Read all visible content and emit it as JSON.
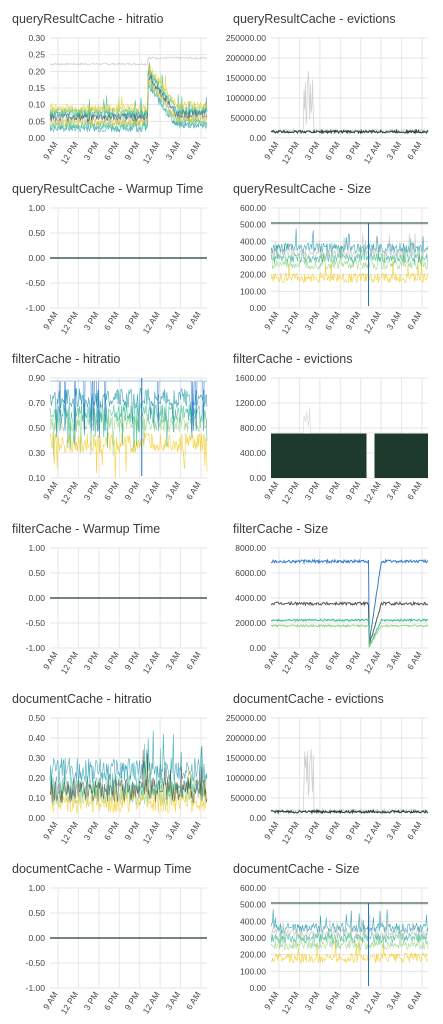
{
  "panels": [
    {
      "title": "queryResultCache - hitratio",
      "chart_data": {
        "type": "line",
        "title": "queryResultCache - hitratio",
        "yticks": [
          "0.30",
          "0.25",
          "0.20",
          "0.15",
          "0.10",
          "0.05",
          "0.00"
        ],
        "ylim": [
          0,
          0.3
        ],
        "xticks": [
          "9 AM",
          "12 PM",
          "3 PM",
          "6 PM",
          "9 PM",
          "12 AM",
          "3 AM",
          "6 AM"
        ],
        "style": "hitratio_q"
      }
    },
    {
      "title": "queryResultCache - evictions",
      "chart_data": {
        "type": "line",
        "title": "queryResultCache - evictions",
        "yticks": [
          "250000.00",
          "200000.00",
          "150000.00",
          "100000.00",
          "50000.00",
          "0.00"
        ],
        "ylim": [
          0,
          250000
        ],
        "xticks": [
          "9 AM",
          "12 PM",
          "3 PM",
          "6 PM",
          "9 PM",
          "12 AM",
          "3 AM",
          "6 AM"
        ],
        "style": "evictions"
      }
    },
    {
      "title": "queryResultCache - Warmup Time",
      "chart_data": {
        "type": "line",
        "title": "queryResultCache - Warmup Time",
        "yticks": [
          "1.00",
          "0.50",
          "0.00",
          "-0.50",
          "-1.00"
        ],
        "ylim": [
          -1,
          1
        ],
        "xticks": [
          "9 AM",
          "12 PM",
          "3 PM",
          "6 PM",
          "9 PM",
          "12 AM",
          "3 AM",
          "6 AM"
        ],
        "style": "flat"
      }
    },
    {
      "title": "queryResultCache - Size",
      "chart_data": {
        "type": "line",
        "title": "queryResultCache - Size",
        "yticks": [
          "600.00",
          "500.00",
          "400.00",
          "300.00",
          "200.00",
          "100.00",
          "0.00"
        ],
        "ylim": [
          0,
          600
        ],
        "xticks": [
          "9 AM",
          "12 PM",
          "3 PM",
          "6 PM",
          "9 PM",
          "12 AM",
          "3 AM",
          "6 AM"
        ],
        "style": "size_q"
      }
    },
    {
      "title": "filterCache - hitratio",
      "chart_data": {
        "type": "line",
        "title": "filterCache - hitratio",
        "yticks": [
          "0.90",
          "0.70",
          "0.50",
          "0.30",
          "0.10"
        ],
        "ylim": [
          0.1,
          1.0
        ],
        "xticks": [
          "9 AM",
          "12 PM",
          "3 PM",
          "6 PM",
          "9 PM",
          "12 AM",
          "3 AM",
          "6 AM"
        ],
        "style": "hitratio_f"
      }
    },
    {
      "title": "filterCache - evictions",
      "chart_data": {
        "type": "line",
        "title": "filterCache - evictions",
        "yticks": [
          "1600.00",
          "1200.00",
          "800.00",
          "400.00",
          "0.00"
        ],
        "ylim": [
          0,
          1800
        ],
        "xticks": [
          "9 AM",
          "12 PM",
          "3 PM",
          "6 PM",
          "9 PM",
          "12 AM",
          "3 AM",
          "6 AM"
        ],
        "style": "evictions_f"
      }
    },
    {
      "title": "filterCache - Warmup Time",
      "chart_data": {
        "type": "line",
        "title": "filterCache - Warmup Time",
        "yticks": [
          "1.00",
          "0.50",
          "0.00",
          "-0.50",
          "-1.00"
        ],
        "ylim": [
          -1,
          1
        ],
        "xticks": [
          "9 AM",
          "12 PM",
          "3 PM",
          "6 PM",
          "9 PM",
          "12 AM",
          "3 AM",
          "6 AM"
        ],
        "style": "flat"
      }
    },
    {
      "title": "filterCache - Size",
      "chart_data": {
        "type": "line",
        "title": "filterCache - Size",
        "yticks": [
          "8000.00",
          "6000.00",
          "4000.00",
          "2000.00",
          "0.00"
        ],
        "ylim": [
          0,
          9000
        ],
        "xticks": [
          "9 AM",
          "12 PM",
          "3 PM",
          "6 PM",
          "9 PM",
          "12 AM",
          "3 AM",
          "6 AM"
        ],
        "style": "size_f"
      }
    },
    {
      "title": "documentCache - hitratio",
      "chart_data": {
        "type": "line",
        "title": "documentCache - hitratio",
        "yticks": [
          "0.50",
          "0.40",
          "0.30",
          "0.20",
          "0.10",
          "0.00"
        ],
        "ylim": [
          0,
          0.5
        ],
        "xticks": [
          "9 AM",
          "12 PM",
          "3 PM",
          "6 PM",
          "9 PM",
          "12 AM",
          "3 AM",
          "6 AM"
        ],
        "style": "hitratio_d"
      }
    },
    {
      "title": "documentCache - evictions",
      "chart_data": {
        "type": "line",
        "title": "documentCache - evictions",
        "yticks": [
          "250000.00",
          "200000.00",
          "150000.00",
          "100000.00",
          "50000.00",
          "0.00"
        ],
        "ylim": [
          0,
          250000
        ],
        "xticks": [
          "9 AM",
          "12 PM",
          "3 PM",
          "6 PM",
          "9 PM",
          "12 AM",
          "3 AM",
          "6 AM"
        ],
        "style": "evictions"
      }
    },
    {
      "title": "documentCache - Warmup Time",
      "chart_data": {
        "type": "line",
        "title": "documentCache - Warmup Time",
        "yticks": [
          "1.00",
          "0.50",
          "0.00",
          "-0.50",
          "-1.00"
        ],
        "ylim": [
          -1,
          1
        ],
        "xticks": [
          "9 AM",
          "12 PM",
          "3 PM",
          "6 PM",
          "9 PM",
          "12 AM",
          "3 AM",
          "6 AM"
        ],
        "style": "flat"
      }
    },
    {
      "title": "documentCache - Size",
      "chart_data": {
        "type": "line",
        "title": "documentCache - Size",
        "yticks": [
          "600.00",
          "500.00",
          "400.00",
          "300.00",
          "200.00",
          "100.00",
          "0.00"
        ],
        "ylim": [
          0,
          600
        ],
        "xticks": [
          "9 AM",
          "12 PM",
          "3 PM",
          "6 PM",
          "9 PM",
          "12 AM",
          "3 AM",
          "6 AM"
        ],
        "style": "size_q"
      }
    }
  ],
  "colors": {
    "teal": "#0a8fa6",
    "green": "#2bb58c",
    "lightgreen": "#8ccf7e",
    "yellow": "#f5c400",
    "gray": "#bdbdbd",
    "dark": "#1d3a2c",
    "blue": "#1f6fc9",
    "darkgray": "#444444"
  }
}
